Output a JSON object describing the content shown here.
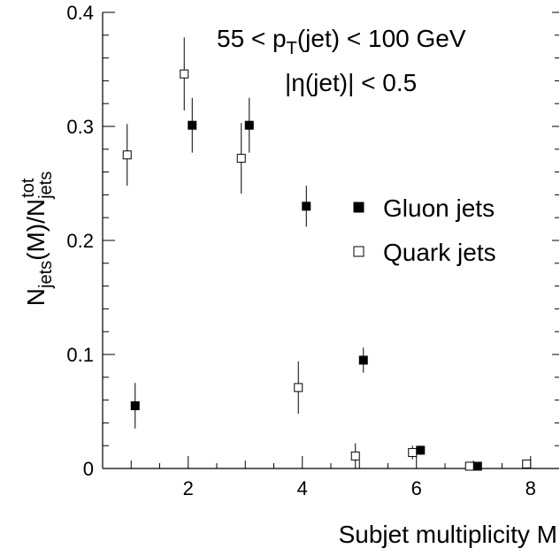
{
  "chart_data": {
    "type": "scatter",
    "annotation": {
      "line1_prefix": "55 < p",
      "line1_sub": "T",
      "line1_suffix": "(jet) < 100 GeV",
      "line2": "|η(jet)| < 0.5"
    },
    "xlabel": "Subjet multiplicity M",
    "ylabel": {
      "main1": "N",
      "sub1": "jets",
      "mid": "(M)/N",
      "sub2": "jets",
      "sup2": "tot"
    },
    "xlim": [
      0.5,
      8.5
    ],
    "ylim": [
      0,
      0.4
    ],
    "x_ticks": [
      "2",
      "4",
      "6",
      "8"
    ],
    "y_ticks": [
      "0",
      "0.1",
      "0.2",
      "0.3",
      "0.4"
    ],
    "grid": false,
    "legend_position": "right-middle",
    "series": [
      {
        "name": "Gluon jets",
        "marker": "filled-square",
        "color": "#000000",
        "points": [
          {
            "x": 1,
            "y": 0.055,
            "err": 0.02
          },
          {
            "x": 2,
            "y": 0.301,
            "err": 0.024
          },
          {
            "x": 3,
            "y": 0.301,
            "err": 0.024
          },
          {
            "x": 4,
            "y": 0.23,
            "err": 0.018
          },
          {
            "x": 5,
            "y": 0.095,
            "err": 0.011
          },
          {
            "x": 6,
            "y": 0.016,
            "err": 0.004
          },
          {
            "x": 7,
            "y": 0.002,
            "err": 0.001
          }
        ]
      },
      {
        "name": "Quark jets",
        "marker": "open-square",
        "color": "#000000",
        "points": [
          {
            "x": 1,
            "y": 0.275,
            "err": 0.027
          },
          {
            "x": 2,
            "y": 0.346,
            "err": 0.032
          },
          {
            "x": 3,
            "y": 0.272,
            "err": 0.031
          },
          {
            "x": 4,
            "y": 0.071,
            "err": 0.023
          },
          {
            "x": 5,
            "y": 0.011,
            "err": 0.011
          },
          {
            "x": 6,
            "y": 0.014,
            "err": 0.006
          },
          {
            "x": 7,
            "y": 0.002,
            "err": 0.001
          },
          {
            "x": 8,
            "y": 0.004,
            "err": 0.002
          }
        ]
      }
    ]
  }
}
